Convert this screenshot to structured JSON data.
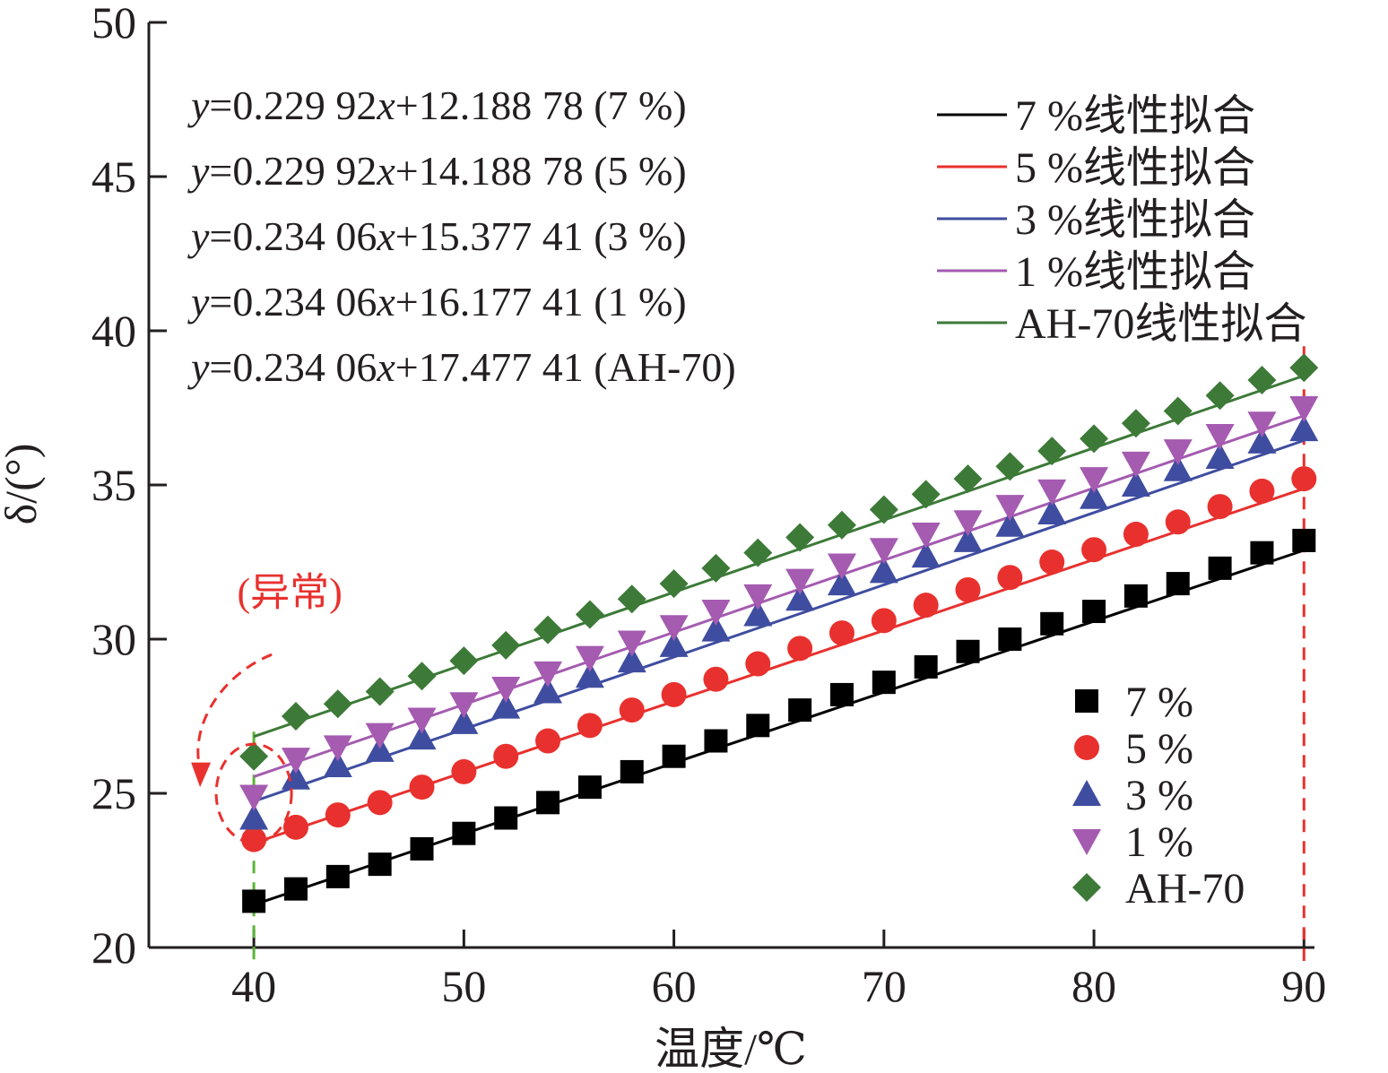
{
  "chart_data": {
    "type": "scatter",
    "xlabel": "温度/℃",
    "ylabel": "δ/(°)",
    "xlim": [
      35,
      90.5
    ],
    "ylim": [
      20,
      50
    ],
    "xticks": [
      40,
      50,
      60,
      70,
      80,
      90
    ],
    "yticks": [
      20,
      25,
      30,
      35,
      40,
      45,
      50
    ],
    "x": [
      40,
      42,
      44,
      46,
      48,
      50,
      52,
      54,
      56,
      58,
      60,
      62,
      64,
      66,
      68,
      70,
      72,
      74,
      76,
      78,
      80,
      82,
      84,
      86,
      88,
      90
    ],
    "series": [
      {
        "name": "7 %",
        "color": "#000000",
        "marker": "square",
        "values": [
          21.5,
          21.9,
          22.3,
          22.7,
          23.2,
          23.7,
          24.2,
          24.7,
          25.2,
          25.7,
          26.2,
          26.7,
          27.2,
          27.7,
          28.2,
          28.6,
          29.1,
          29.6,
          30.0,
          30.5,
          30.9,
          31.4,
          31.8,
          32.3,
          32.8,
          33.2
        ],
        "fit": {
          "name": "7 %线性拟合",
          "slope": 0.22992,
          "intercept": 12.18878
        }
      },
      {
        "name": "5 %",
        "color": "#e8312e",
        "marker": "circle",
        "values": [
          23.5,
          23.9,
          24.3,
          24.7,
          25.2,
          25.7,
          26.2,
          26.7,
          27.2,
          27.7,
          28.2,
          28.7,
          29.2,
          29.7,
          30.2,
          30.6,
          31.1,
          31.6,
          32.0,
          32.5,
          32.9,
          33.4,
          33.8,
          34.3,
          34.8,
          35.2
        ],
        "fit": {
          "name": "5 %线性拟合",
          "slope": 0.22992,
          "intercept": 14.18878
        }
      },
      {
        "name": "3 %",
        "color": "#3f4da0",
        "marker": "triangle-up",
        "values": [
          24.2,
          25.5,
          25.9,
          26.4,
          26.8,
          27.3,
          27.8,
          28.3,
          28.8,
          29.3,
          29.8,
          30.3,
          30.8,
          31.3,
          31.8,
          32.2,
          32.7,
          33.2,
          33.7,
          34.1,
          34.6,
          35.0,
          35.5,
          35.9,
          36.4,
          36.8
        ],
        "fit": {
          "name": "3 %线性拟合",
          "slope": 0.23406,
          "intercept": 15.37741
        }
      },
      {
        "name": "1 %",
        "color": "#a45bb0",
        "marker": "triangle-down",
        "values": [
          24.9,
          26.1,
          26.5,
          26.9,
          27.4,
          27.9,
          28.4,
          28.9,
          29.4,
          29.9,
          30.4,
          30.9,
          31.4,
          31.9,
          32.4,
          32.9,
          33.4,
          33.8,
          34.3,
          34.8,
          35.2,
          35.7,
          36.1,
          36.6,
          37.0,
          37.5
        ],
        "fit": {
          "name": "1 %线性拟合",
          "slope": 0.23406,
          "intercept": 16.17741
        }
      },
      {
        "name": "AH-70",
        "color": "#3d7a38",
        "marker": "diamond",
        "values": [
          26.2,
          27.5,
          27.9,
          28.3,
          28.8,
          29.3,
          29.8,
          30.3,
          30.8,
          31.3,
          31.8,
          32.3,
          32.8,
          33.3,
          33.7,
          34.2,
          34.7,
          35.2,
          35.6,
          36.1,
          36.5,
          37.0,
          37.4,
          37.9,
          38.4,
          38.8
        ],
        "fit": {
          "name": "AH-70线性拟合",
          "slope": 0.23406,
          "intercept": 17.47741
        }
      }
    ],
    "equations": [
      {
        "y": "y",
        "rhs_a": "=0.229 92",
        "x": "x",
        "rhs_b": "+12.188 78 (7 %)"
      },
      {
        "y": "y",
        "rhs_a": "=0.229 92",
        "x": "x",
        "rhs_b": "+14.188 78 (5 %)"
      },
      {
        "y": "y",
        "rhs_a": "=0.234 06",
        "x": "x",
        "rhs_b": "+15.377 41 (3 %)"
      },
      {
        "y": "y",
        "rhs_a": "=0.234 06",
        "x": "x",
        "rhs_b": "+16.177 41 (1 %)"
      },
      {
        "y": "y",
        "rhs_a": "=0.234 06",
        "x": "x",
        "rhs_b": "+17.477 41 (AH-70)"
      }
    ],
    "legend_fit_position": "top-right",
    "legend_marker_position": "bottom-right",
    "annotation": {
      "text": "(异常)",
      "color": "#e8312e",
      "x": 40
    },
    "reference_lines": [
      {
        "x": 40,
        "color": "#59b535",
        "style": "dashed"
      },
      {
        "x": 90,
        "color": "#e8312e",
        "style": "dashed"
      }
    ],
    "grid": false
  }
}
